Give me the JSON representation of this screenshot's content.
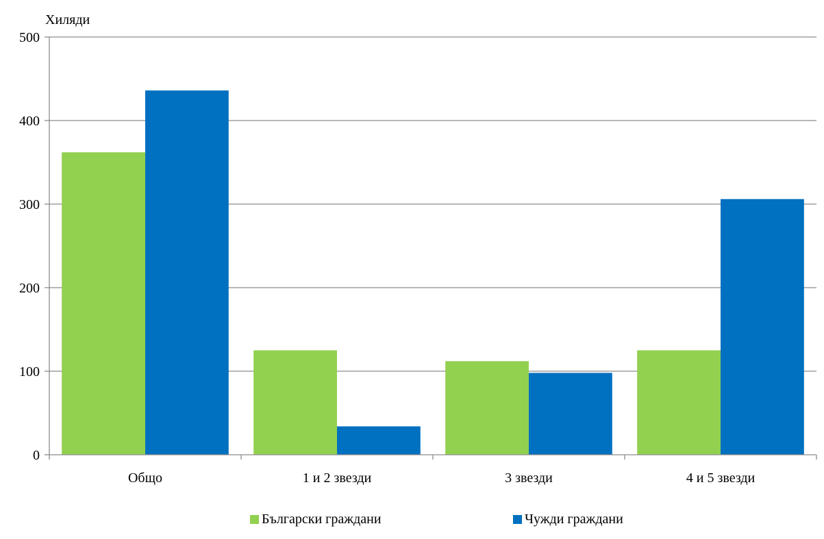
{
  "chart_data": {
    "type": "bar",
    "unit_label": "Хиляди",
    "categories": [
      "Общо",
      "1 и 2 звезди",
      "3 звезди",
      "4 и 5 звезди"
    ],
    "series": [
      {
        "name": "Български граждани",
        "color": "#92d050",
        "values": [
          362,
          125,
          112,
          125
        ]
      },
      {
        "name": "Чужди граждани",
        "color": "#0070c0",
        "values": [
          436,
          34,
          98,
          306
        ]
      }
    ],
    "yticks": [
      0,
      100,
      200,
      300,
      400,
      500
    ],
    "ylim": [
      0,
      500
    ],
    "grid": true,
    "legend_position": "bottom"
  }
}
